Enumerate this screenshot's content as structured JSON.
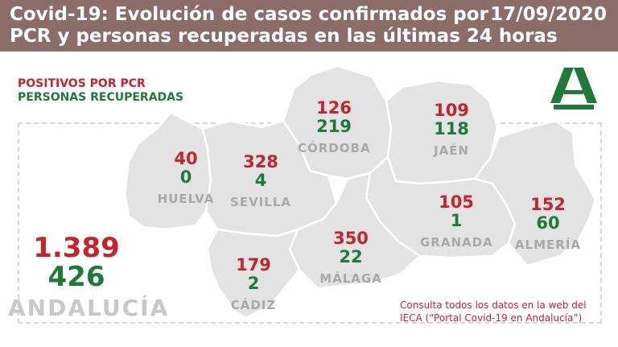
{
  "header": {
    "title_line1": "Covid-19: Evolución de casos confirmados por",
    "title_line2": "PCR y personas recuperadas en las últimas 24 horas",
    "date": "17/09/2020"
  },
  "legend": {
    "positives_label": "POSITIVOS POR PCR",
    "recovered_label": "PERSONAS RECUPERADAS"
  },
  "provinces": [
    {
      "name": "HUELVA",
      "positives": "40",
      "recovered": "0"
    },
    {
      "name": "SEVILLA",
      "positives": "328",
      "recovered": "4"
    },
    {
      "name": "CÓRDOBA",
      "positives": "126",
      "recovered": "219"
    },
    {
      "name": "JAÉN",
      "positives": "109",
      "recovered": "118"
    },
    {
      "name": "GRANADA",
      "positives": "105",
      "recovered": "1"
    },
    {
      "name": "ALMERÍA",
      "positives": "152",
      "recovered": "60"
    },
    {
      "name": "MÁLAGA",
      "positives": "350",
      "recovered": "22"
    },
    {
      "name": "CÁDIZ",
      "positives": "179",
      "recovered": "2"
    }
  ],
  "total": {
    "region": "ANDALUCÍA",
    "positives": "1.389",
    "recovered": "426"
  },
  "footer_note": {
    "line1": "Consulta todos los datos en la web del",
    "line2": "IECA (“Portal Covid-19 en Andalucía”)"
  },
  "colors": {
    "header_bg": "#8b6d67",
    "positives": "#c4242c",
    "recovered": "#1f7a3a",
    "map_fill": "#e3e3e3",
    "logo_green": "#1f7a3a"
  },
  "icons": {
    "logo": "junta-andalucia-logo"
  }
}
